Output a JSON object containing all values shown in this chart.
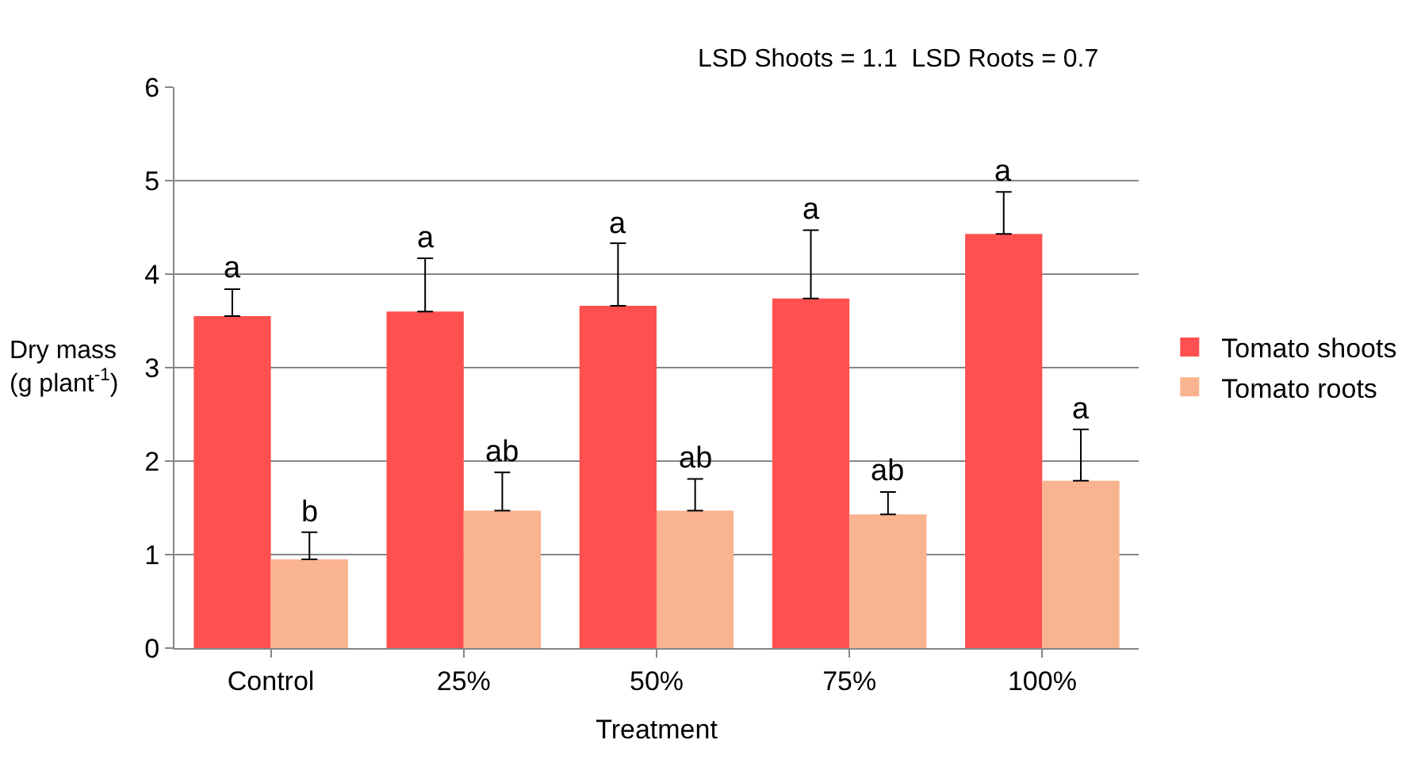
{
  "chart_data": {
    "type": "bar",
    "xlabel": "Treatment",
    "ylabel": "Dry mass\n(g plant$^{-1}$)",
    "categories": [
      "Control",
      "25%",
      "50%",
      "75%",
      "100%"
    ],
    "series": [
      {
        "name": "Tomato shoots",
        "color": "#ff5050",
        "values": [
          3.55,
          3.6,
          3.66,
          3.74,
          4.43
        ],
        "errors": [
          [
            3.55,
            3.84
          ],
          [
            3.6,
            4.17
          ],
          [
            3.66,
            4.33
          ],
          [
            3.74,
            4.47
          ],
          [
            4.43,
            4.88
          ]
        ],
        "value_labels": [
          "a",
          "a",
          "a",
          "a",
          "a"
        ]
      },
      {
        "name": "Tomato roots",
        "color": "#f9b38f",
        "values": [
          0.95,
          1.47,
          1.47,
          1.43,
          1.79
        ],
        "errors": [
          [
            0.95,
            1.24
          ],
          [
            1.47,
            1.88
          ],
          [
            1.47,
            1.81
          ],
          [
            1.43,
            1.67
          ],
          [
            1.79,
            2.34
          ]
        ],
        "value_labels": [
          "b",
          "ab",
          "ab",
          "ab",
          "a"
        ]
      }
    ],
    "ylim": [
      0,
      6
    ],
    "yticks": [
      0,
      1,
      2,
      3,
      4,
      5,
      6
    ],
    "grid": "y",
    "legend": "right",
    "annotations": [
      "LSD Shoots = 1.1  LSD Roots = 0.7"
    ]
  }
}
